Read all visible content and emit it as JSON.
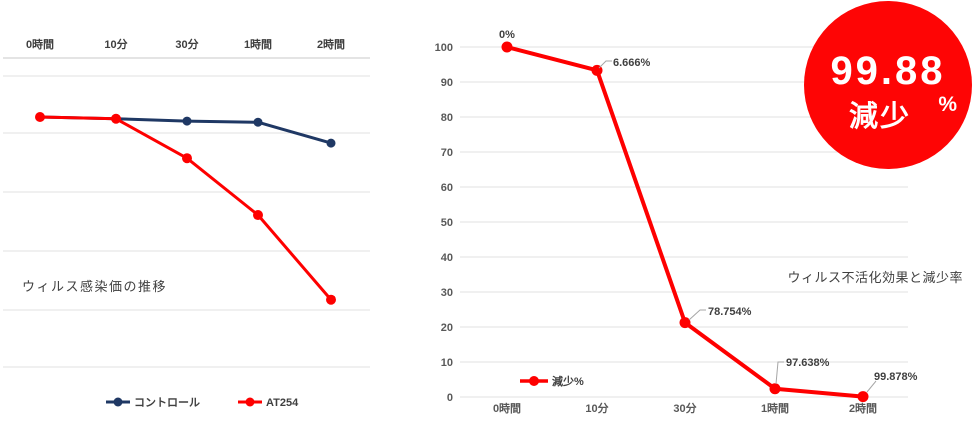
{
  "chart_data": [
    {
      "type": "line",
      "title": "ウィルス感染価の推移",
      "categories": [
        "0時間",
        "10分",
        "30分",
        "1時間",
        "2時間"
      ],
      "series": [
        {
          "name": "コントロール",
          "color": "#1F3864",
          "values": [
            4.31,
            4.28,
            4.24,
            4.22,
            3.86
          ]
        },
        {
          "name": "AT254",
          "color": "#FE0000",
          "values": [
            4.31,
            4.28,
            3.6,
            2.62,
            1.16
          ]
        }
      ],
      "xlabel": "",
      "ylabel": "",
      "ylim": [
        0,
        5.33
      ],
      "y_axis_labels_visible": false,
      "values_note": "y-axis unlabeled in source; series values estimated in gridline units",
      "x_labels_position": "top",
      "legend_position": "bottom",
      "grid": true
    },
    {
      "type": "line",
      "title": "ウィルス不活化効果と減少率",
      "categories": [
        "0時間",
        "10分",
        "30分",
        "1時間",
        "2時間"
      ],
      "series": [
        {
          "name": "減少%",
          "color": "#FE0000",
          "values": [
            100,
            93.334,
            21.246,
            2.362,
            0.122
          ]
        }
      ],
      "point_labels": [
        "0%",
        "6.666%",
        "78.754%",
        "97.638%",
        "99.878%"
      ],
      "yticks": [
        0,
        10,
        20,
        30,
        40,
        50,
        60,
        70,
        80,
        90,
        100
      ],
      "ylim": [
        0,
        100
      ],
      "xlabel": "",
      "ylabel": "",
      "legend_position": "inside-bottom-left",
      "grid": true
    }
  ],
  "badge": {
    "value": "99.88",
    "unit": "%",
    "label": "減少",
    "bg_color": "#FE0505",
    "text_color": "#FFFFFF"
  }
}
